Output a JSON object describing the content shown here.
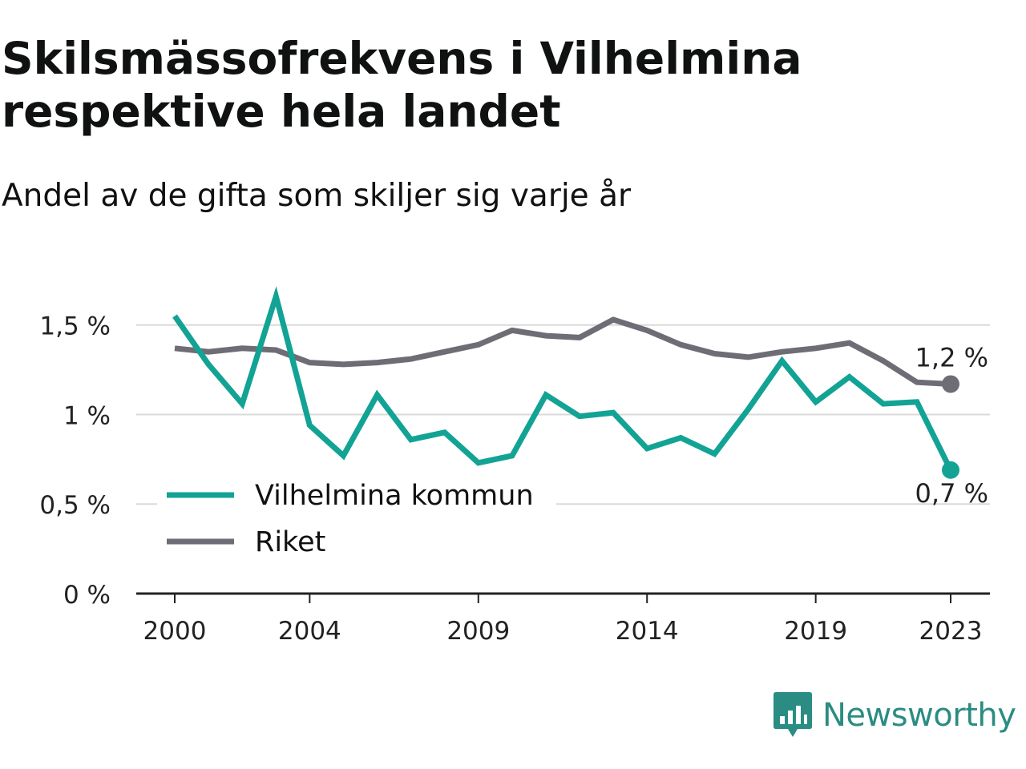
{
  "title": "Skilsmässofrekvens i Vilhelmina respektive hela landet",
  "subtitle": "Andel av de gifta som skiljer sig varje år",
  "brand": {
    "name": "Newsworthy",
    "icon": "newsworthy-logo-icon",
    "color": "#2a8c82"
  },
  "chart_data": {
    "type": "line",
    "title": "Skilsmässofrekvens i Vilhelmina respektive hela landet",
    "subtitle": "Andel av de gifta som skiljer sig varje år",
    "xlabel": "",
    "ylabel": "",
    "x": [
      2000,
      2001,
      2002,
      2003,
      2004,
      2005,
      2006,
      2007,
      2008,
      2009,
      2010,
      2011,
      2012,
      2013,
      2014,
      2015,
      2016,
      2017,
      2018,
      2019,
      2020,
      2021,
      2022,
      2023
    ],
    "xlim": [
      2000,
      2023
    ],
    "x_ticks": [
      2000,
      2004,
      2009,
      2014,
      2019,
      2023
    ],
    "ylim": [
      0,
      1.7
    ],
    "y_ticks": [
      0,
      0.5,
      1,
      1.5
    ],
    "y_tick_labels": [
      "0 %",
      "0,5 %",
      "1 %",
      "1,5 %"
    ],
    "grid": "horizontal",
    "legend_position": "lower-left",
    "series": [
      {
        "name": "Vilhelmina kommun",
        "color": "#12a395",
        "values": [
          1.55,
          1.28,
          1.06,
          1.66,
          0.94,
          0.77,
          1.11,
          0.86,
          0.9,
          0.73,
          0.77,
          1.11,
          0.99,
          1.01,
          0.81,
          0.87,
          0.78,
          1.03,
          1.3,
          1.07,
          1.21,
          1.06,
          1.07,
          0.69
        ],
        "end_label": "0,7 %"
      },
      {
        "name": "Riket",
        "color": "#6e6d75",
        "values": [
          1.37,
          1.35,
          1.37,
          1.36,
          1.29,
          1.28,
          1.29,
          1.31,
          1.35,
          1.39,
          1.47,
          1.44,
          1.43,
          1.53,
          1.47,
          1.39,
          1.34,
          1.32,
          1.35,
          1.37,
          1.4,
          1.3,
          1.18,
          1.17
        ],
        "end_label": "1,2 %"
      }
    ]
  }
}
